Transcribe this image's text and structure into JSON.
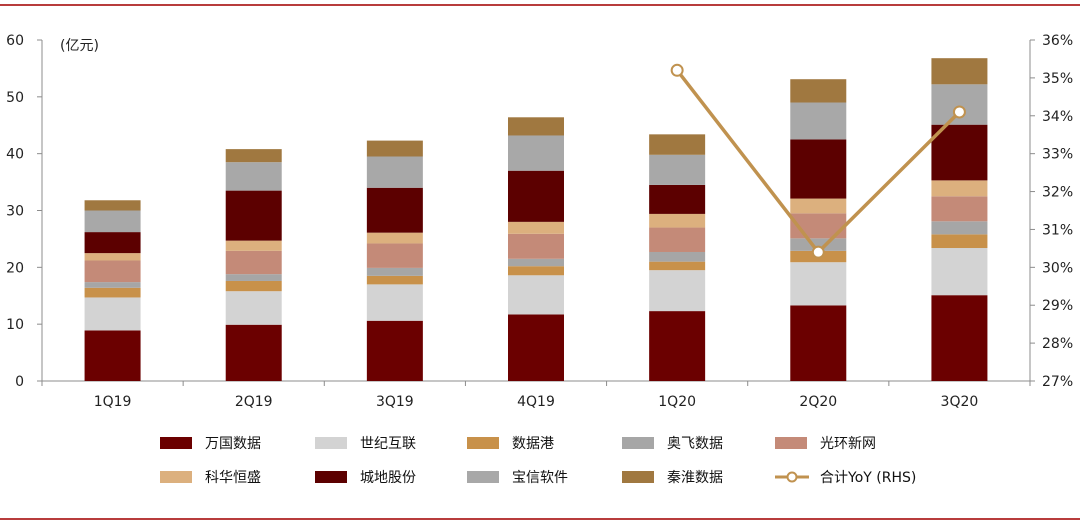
{
  "chart_data": {
    "type": "bar",
    "stacked": true,
    "unit_label": "(亿元)",
    "categories": [
      "1Q19",
      "2Q19",
      "3Q19",
      "4Q19",
      "1Q20",
      "2Q20",
      "3Q20"
    ],
    "y_left": {
      "min": 0,
      "max": 60,
      "step": 10
    },
    "y_right": {
      "min": 27,
      "max": 36,
      "step": 1,
      "suffix": "%"
    },
    "series": [
      {
        "name": "万国数据",
        "color": "#6b0000",
        "values": [
          8.9,
          9.9,
          10.6,
          11.7,
          12.3,
          13.3,
          15.1
        ]
      },
      {
        "name": "世纪互联",
        "color": "#d3d3d3",
        "values": [
          5.8,
          5.9,
          6.4,
          6.9,
          7.2,
          7.6,
          8.3
        ]
      },
      {
        "name": "数据港",
        "color": "#c8914a",
        "values": [
          1.7,
          1.8,
          1.5,
          1.6,
          1.5,
          2.0,
          2.4
        ]
      },
      {
        "name": "奥飞数据",
        "color": "#a6a6a6",
        "values": [
          1.0,
          1.2,
          1.4,
          1.3,
          1.7,
          2.2,
          2.3
        ]
      },
      {
        "name": "光环新网",
        "color": "#c48a78",
        "values": [
          3.8,
          4.1,
          4.3,
          4.4,
          4.3,
          4.4,
          4.4
        ]
      },
      {
        "name": "科华恒盛",
        "color": "#dcb07e",
        "values": [
          1.3,
          1.8,
          1.9,
          2.1,
          2.4,
          2.6,
          2.8
        ]
      },
      {
        "name": "城地股份",
        "color": "#5c0000",
        "values": [
          3.7,
          8.8,
          7.9,
          9.0,
          5.1,
          10.4,
          9.8
        ]
      },
      {
        "name": "宝信软件",
        "color": "#a8a8a8",
        "values": [
          3.8,
          5.0,
          5.5,
          6.2,
          5.3,
          6.5,
          7.1
        ]
      },
      {
        "name": "秦淮数据",
        "color": "#a07840",
        "values": [
          1.8,
          2.3,
          2.8,
          3.2,
          3.6,
          4.1,
          4.6
        ]
      }
    ],
    "line_series": {
      "name": "合计YoY (RHS)",
      "axis": "right",
      "color": "#c0924f",
      "points": [
        {
          "category": "1Q20",
          "value": 35.2
        },
        {
          "category": "2Q20",
          "value": 30.4
        },
        {
          "category": "3Q20",
          "value": 34.1
        }
      ]
    },
    "legend_position": "bottom",
    "grid": false
  }
}
